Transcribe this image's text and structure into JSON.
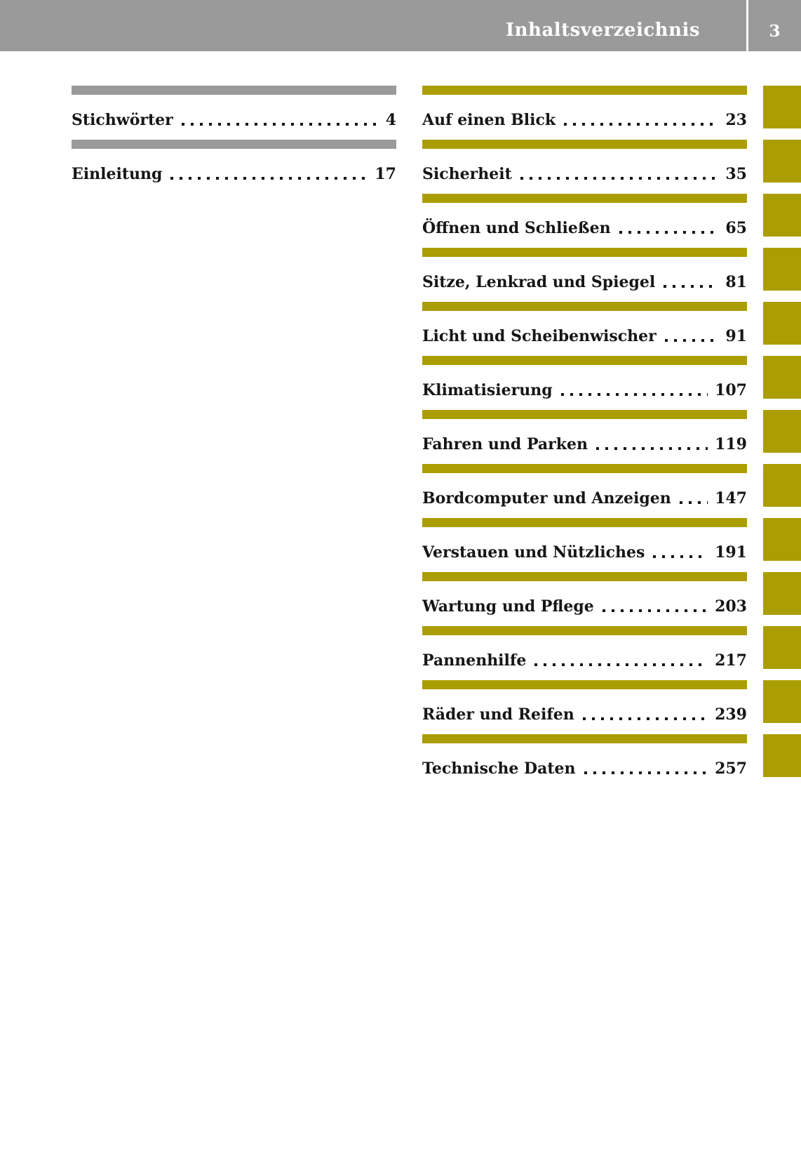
{
  "header": {
    "title": "Inhaltsverzeichnis",
    "page_number": "3"
  },
  "left_column": [
    {
      "label": "Stichwörter",
      "page": "4"
    },
    {
      "label": "Einleitung",
      "page": "17"
    }
  ],
  "right_column": [
    {
      "label": "Auf einen Blick",
      "page": "23"
    },
    {
      "label": "Sicherheit",
      "page": "35"
    },
    {
      "label": "Öffnen und Schließen",
      "page": "65"
    },
    {
      "label": "Sitze, Lenkrad und Spiegel",
      "page": "81"
    },
    {
      "label": "Licht und Scheibenwischer",
      "page": "91"
    },
    {
      "label": "Klimatisierung",
      "page": "107"
    },
    {
      "label": "Fahren und Parken",
      "page": "119"
    },
    {
      "label": "Bordcomputer und Anzeigen",
      "page": "147"
    },
    {
      "label": "Verstauen und Nützliches",
      "page": "191"
    },
    {
      "label": "Wartung und Pflege",
      "page": "203"
    },
    {
      "label": "Pannenhilfe",
      "page": "217"
    },
    {
      "label": "Räder und Reifen",
      "page": "239"
    },
    {
      "label": "Technische Daten",
      "page": "257"
    }
  ],
  "side_tab_count": 13,
  "colors": {
    "header_bg": "#9a9a9a",
    "gray_bar": "#9a9a9a",
    "olive": "#ab9e04",
    "text": "#161616",
    "header_text": "#ffffff"
  }
}
